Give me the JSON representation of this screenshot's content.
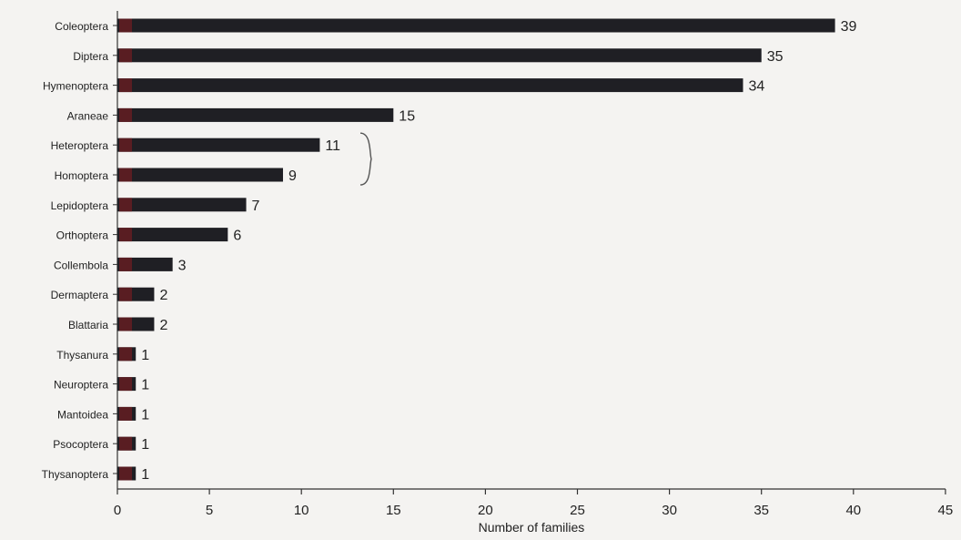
{
  "chart_data": {
    "type": "bar",
    "orientation": "horizontal",
    "title": "",
    "xlabel": "Number of families",
    "ylabel": "",
    "xlim": [
      0,
      45
    ],
    "xticks": [
      0,
      5,
      10,
      15,
      20,
      25,
      30,
      35,
      40,
      45
    ],
    "grid": false,
    "legend": "none",
    "categories": [
      "Coleoptera",
      "Diptera",
      "Hymenoptera",
      "Araneae",
      "Heteroptera",
      "Homoptera",
      "Lepidoptera",
      "Orthoptera",
      "Collembola",
      "Dermaptera",
      "Blattaria",
      "Thysanura",
      "Neuroptera",
      "Mantoidea",
      "Psocoptera",
      "Thysanoptera"
    ],
    "values": [
      39,
      35,
      34,
      15,
      11,
      9,
      7,
      6,
      3,
      2,
      2,
      1,
      1,
      1,
      1,
      1
    ],
    "bar_color": "#1f1f24",
    "bar_accent_color": "#6e1e22",
    "annotations": [
      {
        "type": "brace",
        "categories": [
          "Heteroptera",
          "Homoptera"
        ]
      }
    ]
  }
}
